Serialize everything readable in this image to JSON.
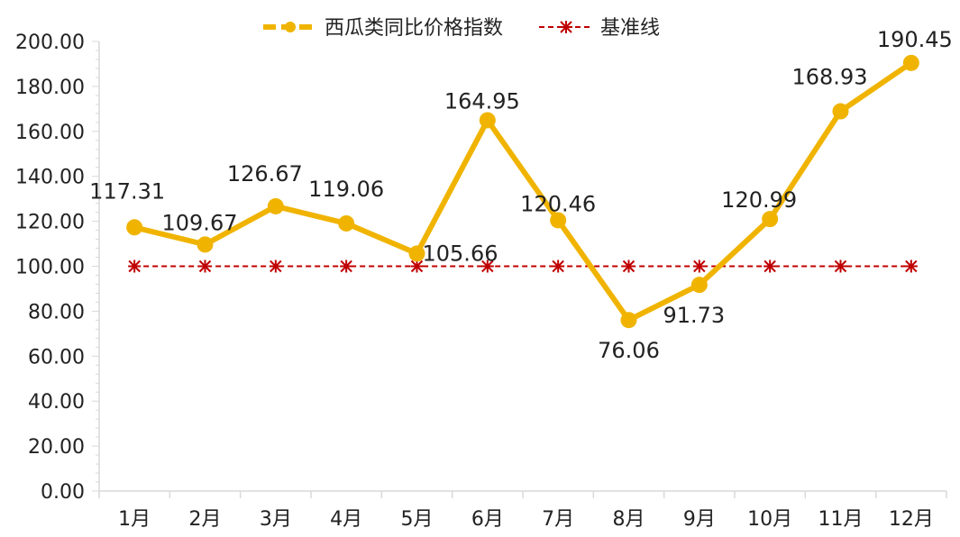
{
  "chart_data": {
    "type": "line",
    "categories": [
      "1月",
      "2月",
      "3月",
      "4月",
      "5月",
      "6月",
      "7月",
      "8月",
      "9月",
      "10月",
      "11月",
      "12月"
    ],
    "series": [
      {
        "name": "西瓜类同比价格指数",
        "values": [
          117.31,
          109.67,
          126.67,
          119.06,
          105.66,
          164.95,
          120.46,
          76.06,
          91.73,
          120.99,
          168.93,
          190.45
        ],
        "color": "#f0b400"
      },
      {
        "name": "基准线",
        "values": [
          100,
          100,
          100,
          100,
          100,
          100,
          100,
          100,
          100,
          100,
          100,
          100
        ],
        "color": "#c00000"
      }
    ],
    "data_labels": [
      "117.31",
      "109.67",
      "126.67",
      "119.06",
      "105.66",
      "164.95",
      "120.46",
      "76.06",
      "91.73",
      "120.99",
      "168.93",
      "190.45"
    ],
    "y_ticks": [
      "0.00",
      "20.00",
      "40.00",
      "60.00",
      "80.00",
      "100.00",
      "120.00",
      "140.00",
      "160.00",
      "180.00",
      "200.00"
    ],
    "ylim": [
      0,
      200
    ],
    "legend_position": "top-center",
    "grid": false
  }
}
